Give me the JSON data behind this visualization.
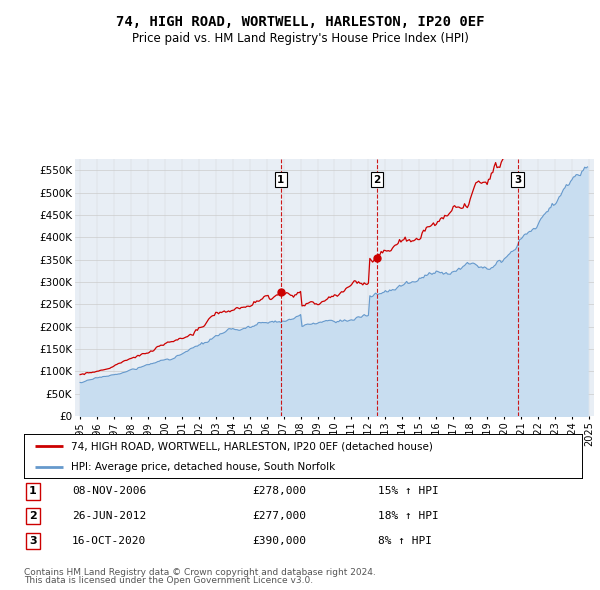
{
  "title": "74, HIGH ROAD, WORTWELL, HARLESTON, IP20 0EF",
  "subtitle": "Price paid vs. HM Land Registry's House Price Index (HPI)",
  "legend_line1": "74, HIGH ROAD, WORTWELL, HARLESTON, IP20 0EF (detached house)",
  "legend_line2": "HPI: Average price, detached house, South Norfolk",
  "footer1": "Contains HM Land Registry data © Crown copyright and database right 2024.",
  "footer2": "This data is licensed under the Open Government Licence v3.0.",
  "sales": [
    {
      "num": 1,
      "date": "08-NOV-2006",
      "price": 278000,
      "pct": "15% ↑ HPI",
      "x_year": 2006.83
    },
    {
      "num": 2,
      "date": "26-JUN-2012",
      "price": 277000,
      "pct": "18% ↑ HPI",
      "x_year": 2012.49
    },
    {
      "num": 3,
      "date": "16-OCT-2020",
      "price": 390000,
      "pct": "8% ↑ HPI",
      "x_year": 2020.79
    }
  ],
  "red_color": "#cc0000",
  "blue_color": "#6699cc",
  "blue_fill_color": "#c8ddf0",
  "vline_color": "#cc0000",
  "grid_color": "#cccccc",
  "background_color": "#ffffff",
  "plot_bg_color": "#e8eef5",
  "ylim": [
    0,
    575000
  ],
  "yticks": [
    0,
    50000,
    100000,
    150000,
    200000,
    250000,
    300000,
    350000,
    400000,
    450000,
    500000,
    550000
  ],
  "xlim_start": 1994.7,
  "xlim_end": 2025.3
}
